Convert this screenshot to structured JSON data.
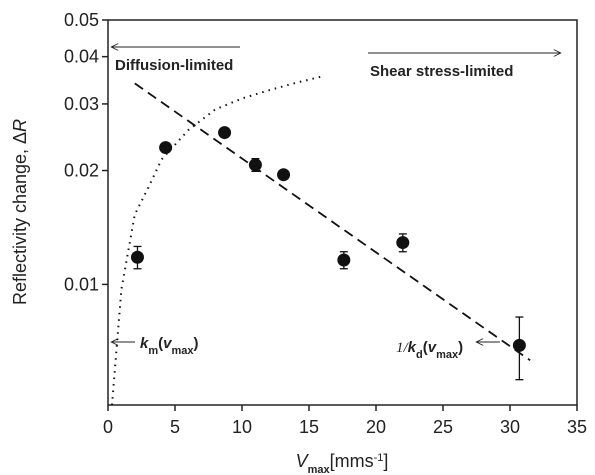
{
  "chart_data": {
    "type": "scatter",
    "x_label": [
      {
        "t": "V",
        "s": "i"
      },
      {
        "t": "max",
        "s": "sub"
      },
      {
        "t": "[mms",
        "s": ""
      },
      {
        "t": "-1",
        "s": "sup"
      },
      {
        "t": "]",
        "s": ""
      }
    ],
    "y_label": [
      {
        "t": "Reflectivity change, Δ",
        "s": ""
      },
      {
        "t": "R",
        "s": "i"
      }
    ],
    "log_y": true,
    "xlim": [
      0,
      35
    ],
    "xticks": [
      0,
      5,
      10,
      15,
      20,
      25,
      30,
      35
    ],
    "ylim": [
      0.0048,
      0.05
    ],
    "yticks": [
      0.01,
      0.02,
      0.03,
      0.04,
      0.05
    ],
    "series": [
      {
        "kind": "points",
        "color": "#111",
        "x": [
          2.2,
          4.3,
          8.7,
          11.0,
          13.1,
          17.6,
          22.0,
          30.7
        ],
        "values": [
          0.0118,
          0.023,
          0.0252,
          0.0207,
          0.0195,
          0.0116,
          0.0129,
          0.0069
        ],
        "errors": [
          0.0008,
          null,
          null,
          0.0008,
          null,
          0.0006,
          0.0007,
          0.0013
        ]
      },
      {
        "kind": "dotted",
        "color": "#111",
        "x": [
          0.3,
          1,
          2,
          3,
          4,
          6,
          8,
          10,
          12,
          14,
          15.9
        ],
        "values": [
          0.0048,
          0.0097,
          0.0153,
          0.018,
          0.0214,
          0.0256,
          0.029,
          0.031,
          0.0326,
          0.0341,
          0.0354
        ]
      },
      {
        "kind": "dashed",
        "color": "#111",
        "x": [
          2,
          31.5
        ],
        "values": [
          0.034,
          0.0063
        ]
      }
    ],
    "annotations": [
      [
        {
          "t": "Diffusion-limited",
          "s": "b"
        }
      ],
      [
        {
          "t": "Shear stress-limited",
          "s": "b"
        }
      ],
      [
        {
          "t": "k",
          "s": "bi"
        },
        {
          "t": "m",
          "s": "subb"
        },
        {
          "t": "(",
          "s": "b"
        },
        {
          "t": "v",
          "s": "bi"
        },
        {
          "t": "max",
          "s": "subb"
        },
        {
          "t": ")",
          "s": "b"
        }
      ],
      [
        {
          "t": "1/",
          "s": "serif"
        },
        {
          "t": "k",
          "s": "bi"
        },
        {
          "t": "d",
          "s": "subb"
        },
        {
          "t": "(",
          "s": "b"
        },
        {
          "t": "v",
          "s": "bi"
        },
        {
          "t": "max",
          "s": "subb"
        },
        {
          "t": ")",
          "s": "b"
        }
      ]
    ]
  }
}
